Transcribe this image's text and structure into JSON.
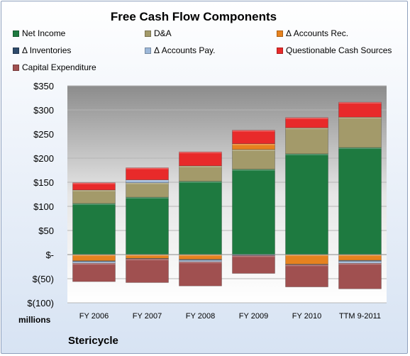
{
  "chart_data": {
    "type": "bar",
    "stacked": true,
    "title": "Free Cash Flow Components",
    "categories": [
      "FY 2006",
      "FY 2007",
      "FY 2008",
      "FY 2009",
      "FY 2010",
      "TTM 9-2011"
    ],
    "y_tick_labels": [
      "$350",
      "$300",
      "$250",
      "$200",
      "$150",
      "$100",
      "$50",
      "$-",
      "$(50)",
      "$(100)"
    ],
    "y_tick_values": [
      350,
      300,
      250,
      200,
      150,
      100,
      50,
      0,
      -50,
      -100
    ],
    "ylim": [
      -100,
      350
    ],
    "ylabel": "millions",
    "legend_placement": "top",
    "grid": true,
    "series": [
      {
        "name": "Net Income",
        "color": "#1e7a40",
        "values": [
          106,
          119,
          152,
          177,
          209,
          222
        ]
      },
      {
        "name": "D&A",
        "color": "#a39a6a",
        "values": [
          28,
          30,
          32,
          41,
          54,
          63
        ]
      },
      {
        "name": "Δ Accounts Rec.",
        "color": "#e6821f",
        "values": [
          -13,
          -8,
          -10,
          12,
          -20,
          -12
        ]
      },
      {
        "name": "Δ Inventories",
        "color": "#2e4a6b",
        "values": [
          -2,
          -1,
          -2,
          -2,
          -1,
          -2
        ]
      },
      {
        "name": "Δ Accounts Pay.",
        "color": "#9db8d9",
        "values": [
          -3,
          6,
          -3,
          0,
          0,
          -4
        ]
      },
      {
        "name": "Questionable Cash Sources",
        "color": "#e82a2a",
        "values": [
          15,
          25,
          29,
          28,
          21,
          31
        ]
      },
      {
        "name": "Capital Expenditure",
        "color": "#a05050",
        "values": [
          -38,
          -49,
          -50,
          -37,
          -46,
          -53
        ]
      }
    ]
  },
  "footer": {
    "company": "Stericycle"
  }
}
